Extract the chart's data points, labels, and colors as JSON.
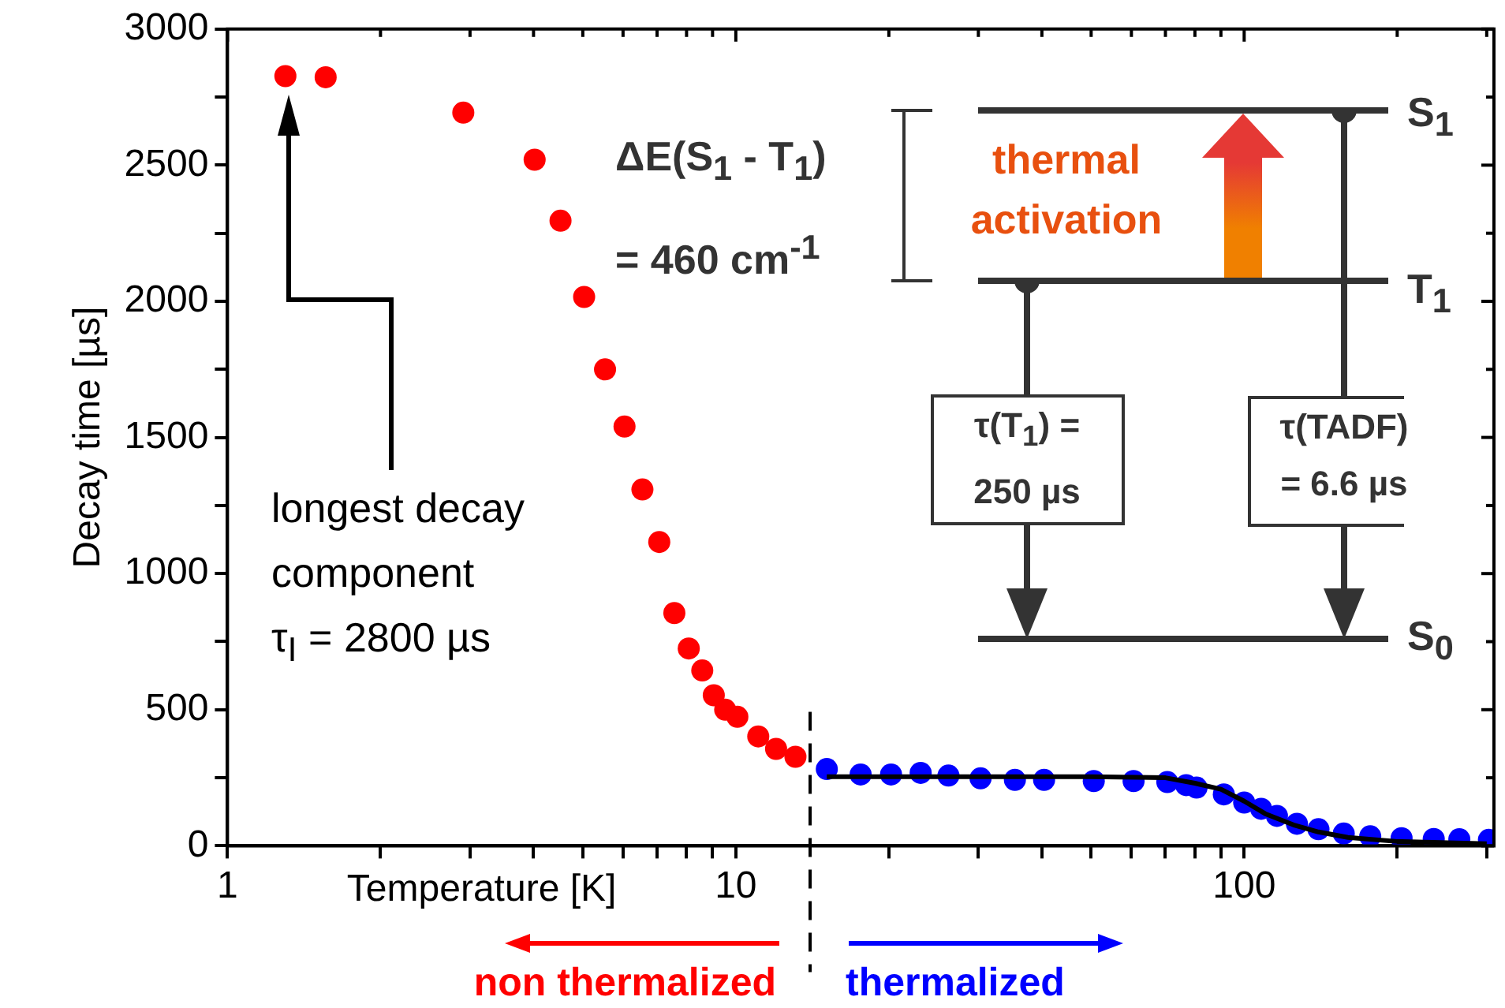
{
  "chart_data": {
    "type": "scatter",
    "xlabel": "Temperature [K]",
    "ylabel": "Decay time [µs]",
    "log": "x",
    "xlim": [
      1,
      310
    ],
    "ylim": [
      0,
      3000
    ],
    "xticks": [
      1,
      {
        "value": 2,
        "label": null
      },
      {
        "value": 3,
        "label": null
      },
      {
        "value": 4,
        "label": null
      },
      {
        "value": 5,
        "label": null
      },
      {
        "value": 6,
        "label": null
      },
      {
        "value": 7,
        "label": null
      },
      {
        "value": 8,
        "label": null
      },
      {
        "value": 9,
        "label": null
      },
      10,
      {
        "value": 20,
        "label": null
      },
      {
        "value": 30,
        "label": null
      },
      {
        "value": 40,
        "label": null
      },
      {
        "value": 50,
        "label": null
      },
      {
        "value": 60,
        "label": null
      },
      {
        "value": 70,
        "label": null
      },
      {
        "value": 80,
        "label": null
      },
      {
        "value": 90,
        "label": null
      },
      100,
      {
        "value": 200,
        "label": null
      },
      {
        "value": 300,
        "label": null
      }
    ],
    "yticks": [
      0,
      {
        "value": 250,
        "label": null
      },
      500,
      {
        "value": 750,
        "label": null
      },
      1000,
      {
        "value": 1250,
        "label": null
      },
      1500,
      {
        "value": 1750,
        "label": null
      },
      2000,
      {
        "value": 2250,
        "label": null
      },
      2500,
      {
        "value": 2750,
        "label": null
      },
      3000
    ],
    "grid": false,
    "legend": "bottom",
    "marker": "circle",
    "ref_lines": [
      {
        "axis": "x",
        "value": 14,
        "line_style": "dashed"
      }
    ],
    "annotations": [
      "longest decay\ncomponent\nτ$_{I}$ = 2800 µs",
      "ΔE(S$_{1}$ - T$_{1}$)\n= 460 cm$^{-1}$",
      "thermal\nactivation",
      "S$_{1}$",
      "T$_{1}$",
      "S$_{0}$",
      "τ(T$_{1}$) =\n250 µs",
      "τ(TADF)\n= 6.6 µs"
    ],
    "series": [
      {
        "name": "non thermalized",
        "color": "#ff0000",
        "x": [
          1.3,
          1.56,
          2.91,
          4.02,
          4.52,
          5.03,
          5.53,
          6.04,
          6.55,
          7.07,
          7.57,
          8.08,
          8.59,
          9.05,
          9.53,
          10.07,
          11.07,
          12.0,
          13.1
        ],
        "values": [
          2827,
          2823,
          2693,
          2520,
          2296,
          2016,
          1750,
          1540,
          1309,
          1116,
          855,
          725,
          644,
          553,
          500,
          474,
          402,
          356,
          327
        ]
      },
      {
        "name": "thermalized",
        "color": "#0000ff",
        "x": [
          15.1,
          17.6,
          20.2,
          23.1,
          26.2,
          30.3,
          35.4,
          40.4,
          50.6,
          60.6,
          70.6,
          76.9,
          80.6,
          91.2,
          100,
          108,
          116,
          127,
          140,
          157,
          177,
          204,
          236,
          265,
          303
        ],
        "values": [
          282,
          262,
          262,
          268,
          258,
          248,
          242,
          242,
          238,
          238,
          234,
          223,
          214,
          189,
          159,
          136,
          110,
          81,
          61,
          45,
          35,
          28,
          25,
          24,
          22
        ]
      },
      {
        "type": "line",
        "color": "#000000",
        "marker": "none",
        "x": [
          15.1,
          30,
          50,
          70,
          80,
          90,
          100,
          110,
          125,
          140,
          160,
          200,
          300
        ],
        "values": [
          254,
          254,
          254,
          250,
          230,
          208,
          164,
          118,
          77,
          51,
          31,
          16,
          8
        ]
      }
    ]
  }
}
